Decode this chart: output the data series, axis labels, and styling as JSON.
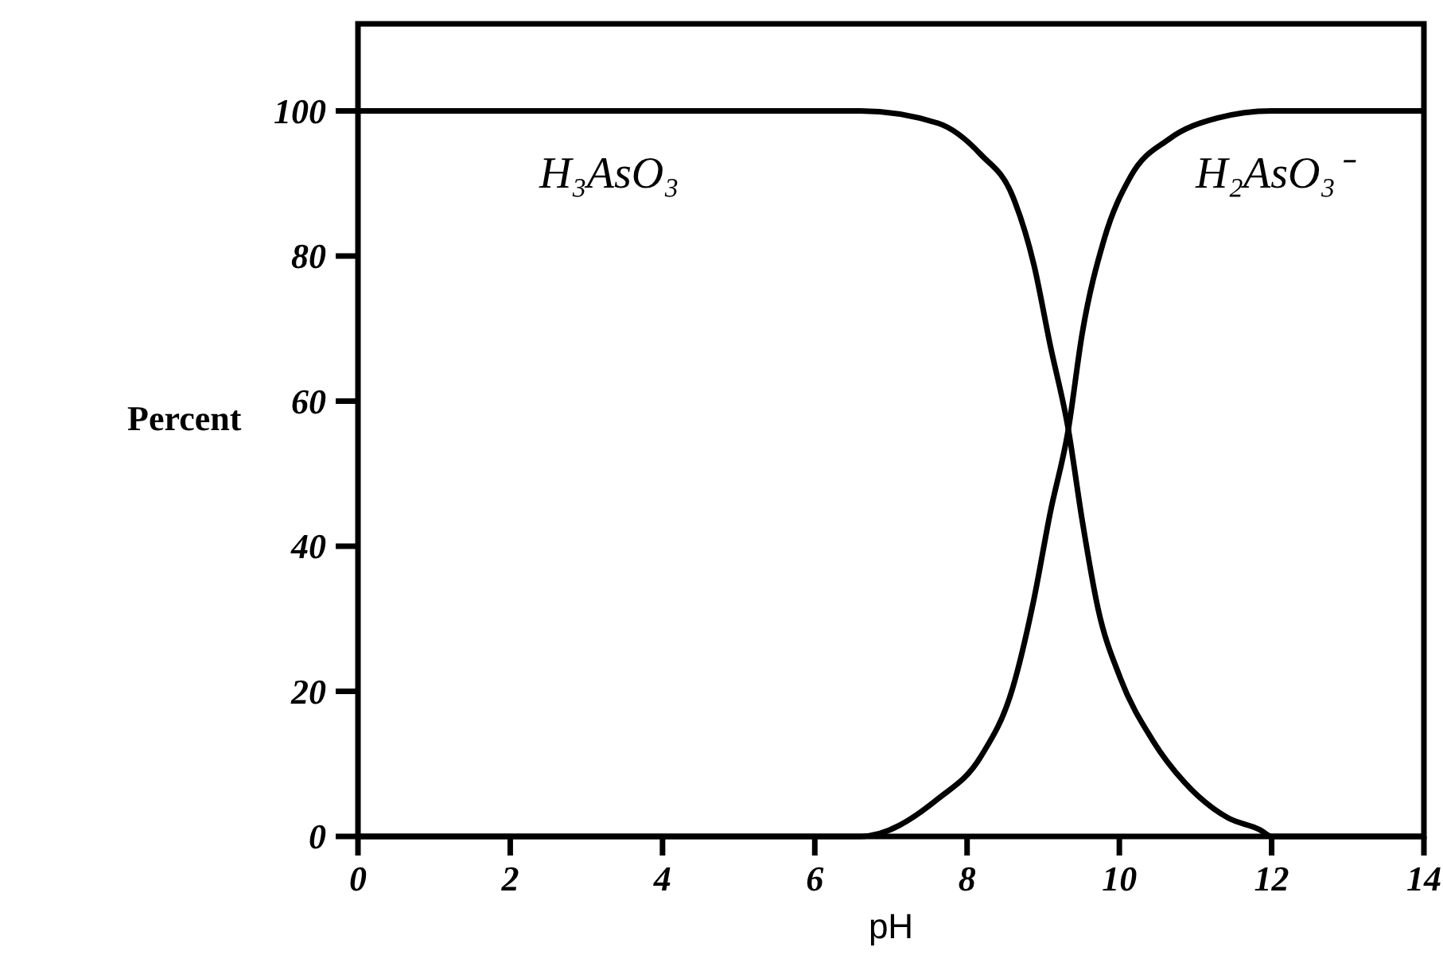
{
  "chart_data": {
    "type": "line",
    "xlabel": "pH",
    "ylabel": "Percent",
    "xlim": [
      0,
      14
    ],
    "ylim": [
      0,
      112
    ],
    "xticks": [
      0,
      2,
      4,
      6,
      8,
      10,
      12,
      14
    ],
    "yticks": [
      0,
      20,
      40,
      60,
      80,
      100
    ],
    "grid": false,
    "marker": "none",
    "line_style": "solid",
    "series": [
      {
        "name": "H₃AsO₃",
        "color": "#000000",
        "x": [
          0,
          6.6,
          7.62,
          8.18,
          8.6,
          8.88,
          9.09,
          9.33,
          9.51,
          9.72,
          10.01,
          10.44,
          10.86,
          11.42,
          11.85,
          12,
          14
        ],
        "values": [
          100,
          100,
          98.3,
          94,
          88.2,
          78.7,
          67.8,
          56.1,
          43.7,
          31.4,
          21.9,
          13.2,
          7.4,
          2.6,
          0.9,
          0,
          0
        ]
      },
      {
        "name": "H₂AsO₃⁻",
        "color": "#000000",
        "x": [
          0,
          6.6,
          7.62,
          8.18,
          8.6,
          8.88,
          9.09,
          9.33,
          9.51,
          9.8,
          10.15,
          10.65,
          11.28,
          12,
          14
        ],
        "values": [
          0,
          0,
          5.2,
          11,
          20.5,
          32.8,
          44.5,
          56.1,
          69.2,
          82.3,
          91,
          96.1,
          99,
          100,
          100
        ]
      }
    ]
  }
}
